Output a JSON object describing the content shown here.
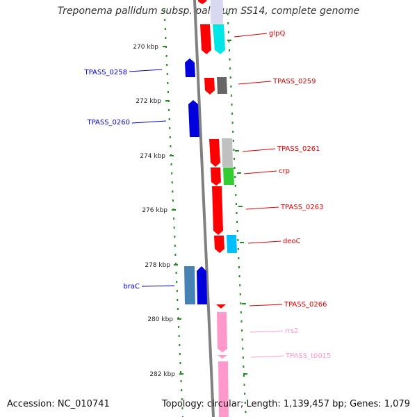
{
  "title": "Treponema pallidum subsp. pallidum SS14, complete genome",
  "footer": {
    "accession": "Accession: NC_010741",
    "summary": "Topology: circular; Length: 1,139,457 bp; Genes: 1,079"
  },
  "ruler": [
    "270 kbp",
    "272 kbp",
    "274 kbp",
    "276 kbp",
    "278 kbp",
    "280 kbp",
    "282 kbp"
  ],
  "genes_left": [
    "TPASS_0258",
    "TPASS_0260",
    "braC"
  ],
  "genes_right": [
    "glpQ",
    "TPASS_0259",
    "TPASS_0261",
    "crp",
    "TPASS_0263",
    "deoC",
    "TPASS_0266",
    "rrs2",
    "TPASS_t0015"
  ],
  "colors": {
    "forward_strand": "#ff0000",
    "reverse_strand": "#0000dd",
    "rRNA": "#ff99cc",
    "tick_dots": "#228b22",
    "backbone": "#888888"
  }
}
